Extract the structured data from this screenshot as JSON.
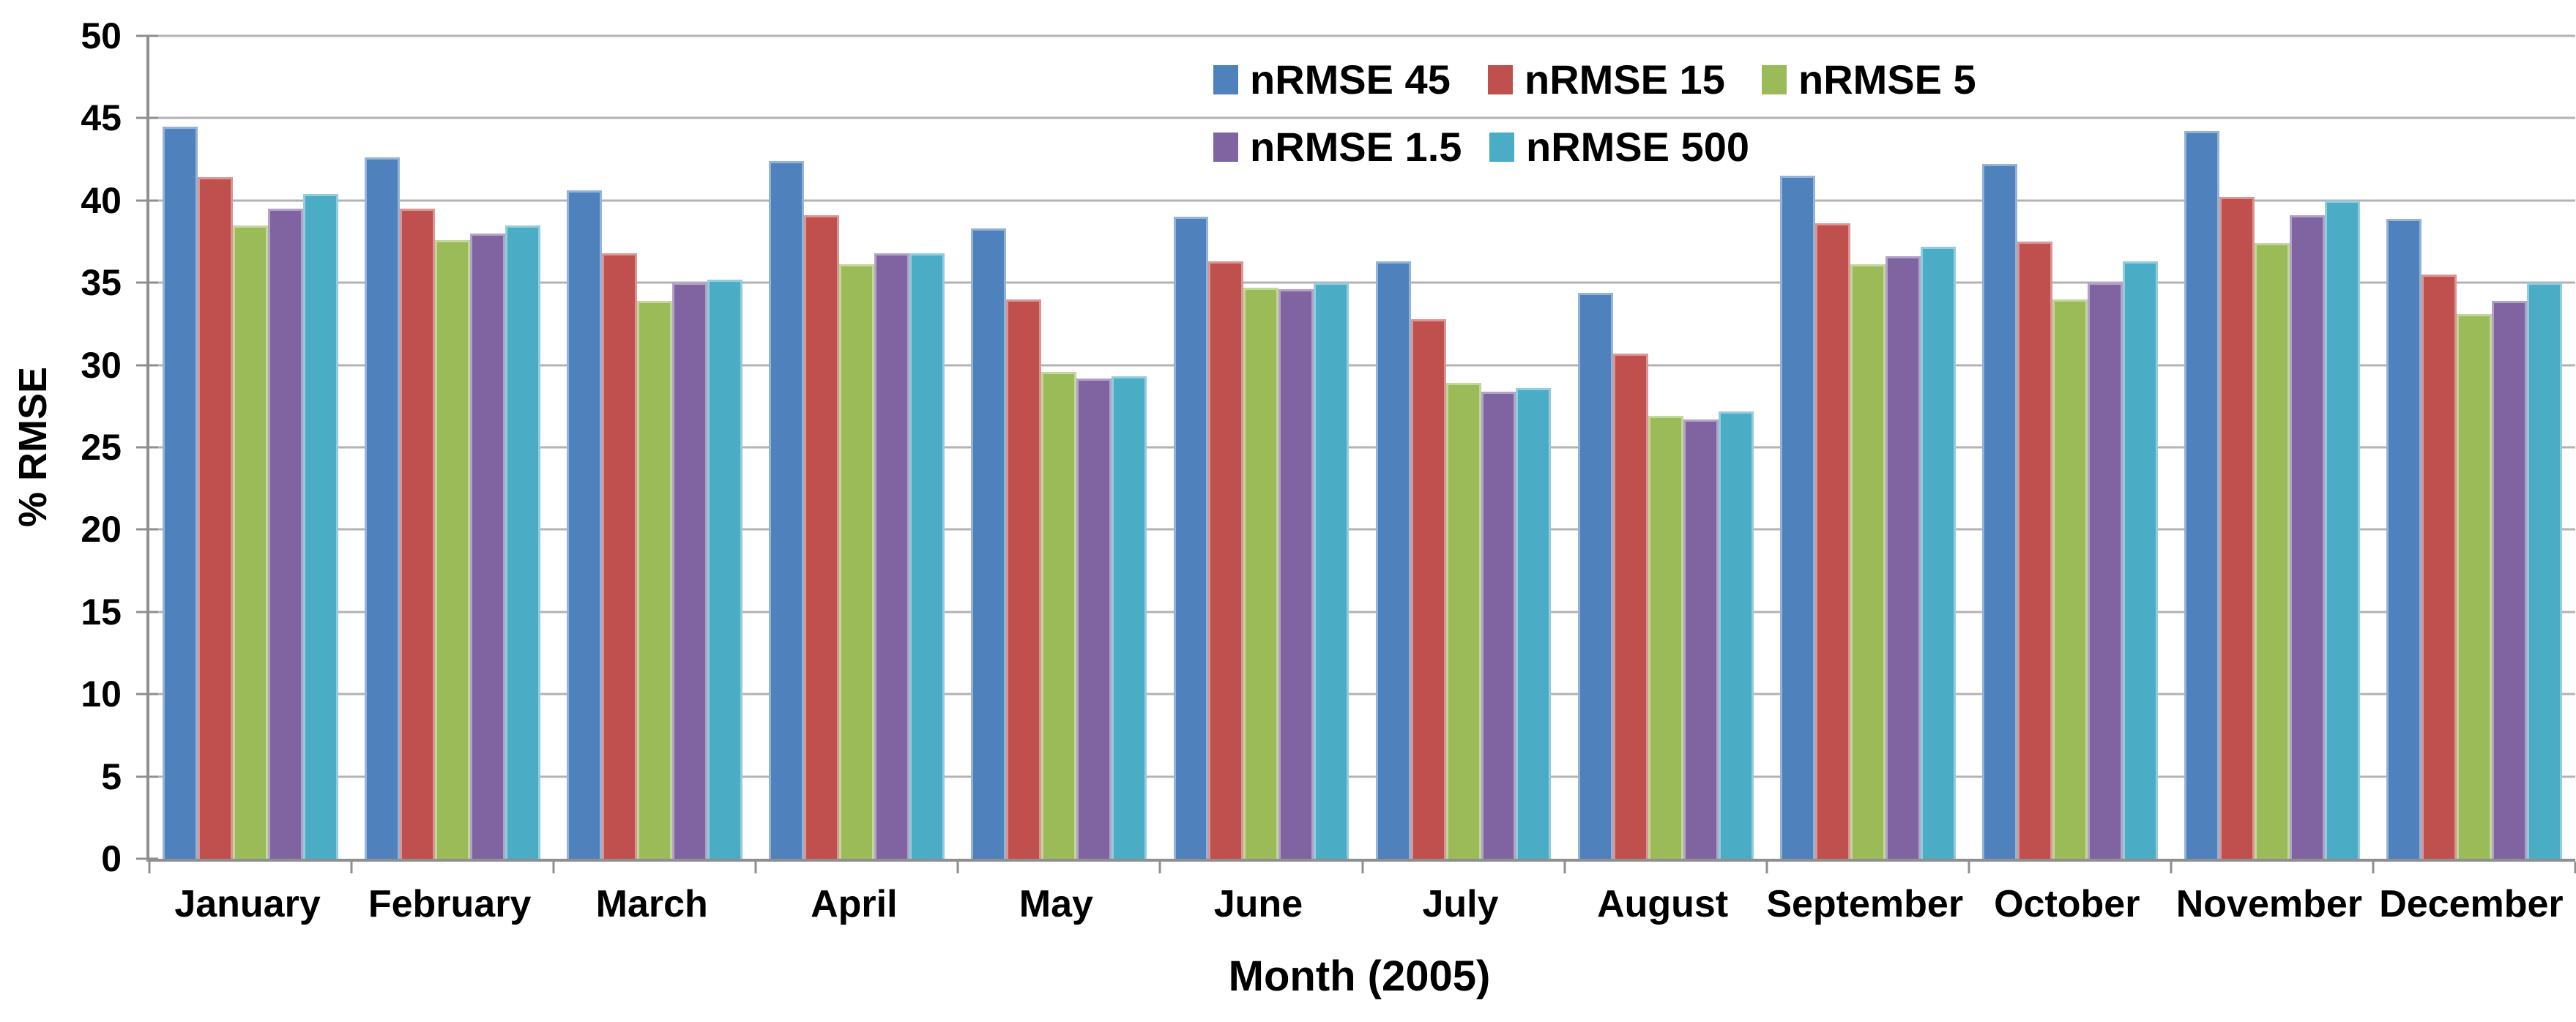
{
  "chart_data": {
    "type": "bar",
    "title": "",
    "xlabel": "Month (2005)",
    "ylabel": "% RMSE",
    "ylim": [
      0,
      50
    ],
    "ytick_step": 5,
    "grid": true,
    "legend_position": "top-center-inside",
    "legend_rows": [
      [
        "nRMSE 45",
        "nRMSE 15",
        "nRMSE 5"
      ],
      [
        "nRMSE 1.5",
        "nRMSE 500"
      ]
    ],
    "categories": [
      "January",
      "February",
      "March",
      "April",
      "May",
      "June",
      "July",
      "August",
      "September",
      "October",
      "November",
      "December"
    ],
    "series": [
      {
        "name": "nRMSE 45",
        "color": "#4F81BD",
        "edge_color": "#95B3D7",
        "values": [
          44.5,
          42.6,
          40.6,
          42.4,
          38.3,
          39.0,
          36.3,
          34.4,
          41.5,
          42.2,
          44.2,
          38.9
        ]
      },
      {
        "name": "nRMSE 15",
        "color": "#C0504D",
        "edge_color": "#D99694",
        "values": [
          41.4,
          39.5,
          36.8,
          39.1,
          34.0,
          36.3,
          32.8,
          30.7,
          38.6,
          37.5,
          40.2,
          35.5
        ]
      },
      {
        "name": "nRMSE 5",
        "color": "#9BBB59",
        "edge_color": "#C3D69B",
        "values": [
          38.5,
          37.6,
          33.9,
          36.1,
          29.6,
          34.7,
          28.9,
          26.9,
          36.1,
          34.0,
          37.4,
          33.1
        ]
      },
      {
        "name": "nRMSE 1.5",
        "color": "#8064A2",
        "edge_color": "#B3A2C7",
        "values": [
          39.5,
          38.0,
          35.0,
          36.8,
          29.2,
          34.6,
          28.4,
          26.7,
          36.6,
          35.0,
          39.1,
          33.9
        ]
      },
      {
        "name": "nRMSE 500",
        "color": "#4BACC6",
        "edge_color": "#93CDDD",
        "values": [
          40.4,
          38.5,
          35.2,
          36.8,
          29.3,
          35.0,
          28.6,
          27.2,
          37.2,
          36.3,
          40.0,
          35.0
        ]
      }
    ],
    "axis_color": "#8f8f8f",
    "gridline_color": "#b3b3b3",
    "text_color": "#000000"
  }
}
